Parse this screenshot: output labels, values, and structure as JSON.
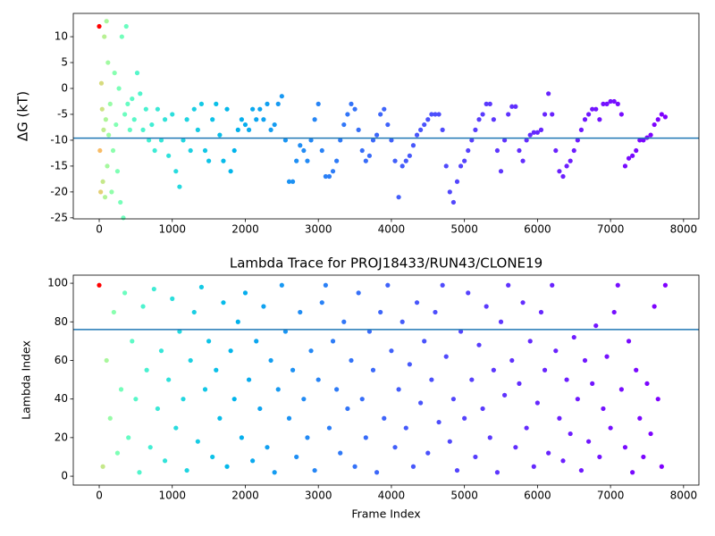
{
  "chart_data": [
    {
      "type": "scatter",
      "ylabel": "ΔG (kT)",
      "colormap": "rainbow_r",
      "x": [
        0,
        10,
        20,
        30,
        40,
        50,
        60,
        70,
        80,
        90,
        100,
        110,
        120,
        130,
        150,
        170,
        190,
        210,
        230,
        250,
        270,
        290,
        310,
        330,
        350,
        370,
        390,
        420,
        450,
        480,
        520,
        560,
        600,
        640,
        680,
        720,
        760,
        800,
        850,
        900,
        950,
        1000,
        1050,
        1100,
        1150,
        1200,
        1250,
        1300,
        1350,
        1400,
        1450,
        1500,
        1550,
        1600,
        1650,
        1700,
        1750,
        1800,
        1850,
        1900,
        1950,
        2000,
        2050,
        2100,
        2150,
        2200,
        2250,
        2300,
        2350,
        2400,
        2450,
        2500,
        2550,
        2600,
        2650,
        2700,
        2750,
        2800,
        2850,
        2900,
        2950,
        3000,
        3050,
        3100,
        3150,
        3200,
        3250,
        3300,
        3350,
        3400,
        3450,
        3500,
        3550,
        3600,
        3650,
        3700,
        3750,
        3800,
        3850,
        3900,
        3950,
        4000,
        4050,
        4100,
        4150,
        4200,
        4250,
        4300,
        4350,
        4400,
        4450,
        4500,
        4550,
        4600,
        4650,
        4700,
        4750,
        4800,
        4850,
        4900,
        4950,
        5000,
        5050,
        5100,
        5150,
        5200,
        5250,
        5300,
        5350,
        5400,
        5450,
        5500,
        5550,
        5600,
        5650,
        5700,
        5750,
        5800,
        5850,
        5900,
        5950,
        6000,
        6050,
        6100,
        6150,
        6200,
        6250,
        6300,
        6350,
        6400,
        6450,
        6500,
        6550,
        6600,
        6650,
        6700,
        6750,
        6800,
        6850,
        6900,
        6950,
        7000,
        7050,
        7100,
        7150,
        7200,
        7250,
        7300,
        7350,
        7400,
        7450,
        7500,
        7550,
        7600,
        7650,
        7700,
        7750
      ],
      "values": [
        12,
        -12,
        -20,
        1,
        -4,
        -18,
        -8,
        10,
        -21,
        -6,
        13,
        -15,
        5,
        -9,
        -3,
        -20,
        -12,
        3,
        -7,
        -16,
        0,
        -22,
        10,
        -25,
        -5,
        12,
        -3,
        -8,
        -2,
        -6,
        3,
        -1,
        -8,
        -4,
        -10,
        -7,
        -12,
        -4,
        -10,
        -6,
        -13,
        -5,
        -16,
        -19,
        -10,
        -6,
        -12,
        -4,
        -8,
        -3,
        -12,
        -14,
        -6,
        -3,
        -9,
        -14,
        -4,
        -16,
        -12,
        -8,
        -6,
        -7,
        -8,
        -4,
        -6,
        -4,
        -6,
        -3,
        -8,
        -7,
        -3,
        -1.5,
        -10,
        -18,
        -18,
        -14,
        -11,
        -12,
        -14,
        -10,
        -6,
        -3,
        -12,
        -17,
        -17,
        -16,
        -14,
        -10,
        -7,
        -5,
        -3,
        -4,
        -8,
        -12,
        -14,
        -13,
        -10,
        -9,
        -5,
        -4,
        -7,
        -10,
        -14,
        -21,
        -15,
        -14,
        -13,
        -11,
        -9,
        -8,
        -7,
        -6,
        -5,
        -5,
        -5,
        -8,
        -15,
        -20,
        -22,
        -18,
        -15,
        -14,
        -12,
        -10,
        -8,
        -6,
        -5,
        -3,
        -3,
        -6,
        -12,
        -16,
        -10,
        -5,
        -3.5,
        -3.5,
        -12,
        -14,
        -10,
        -9,
        -8.5,
        -8.5,
        -8,
        -5,
        -1,
        -5,
        -12,
        -16,
        -17,
        -15,
        -14,
        -12,
        -10,
        -8,
        -6,
        -5,
        -4,
        -4,
        -6,
        -3,
        -3,
        -2.5,
        -2.5,
        -3,
        -5,
        -15,
        -13.5,
        -13,
        -12,
        -10,
        -10,
        -9.5,
        -9,
        -7,
        -6,
        -5,
        -5.5
      ],
      "hline": -9.6,
      "hline_color": "#1f77b4",
      "xlim": [
        -355,
        8210
      ],
      "ylim": [
        -25.2,
        14.5
      ],
      "xticks": [
        0,
        1000,
        2000,
        3000,
        4000,
        5000,
        6000,
        7000,
        8000
      ],
      "yticks": [
        -25,
        -20,
        -15,
        -10,
        -5,
        0,
        5,
        10
      ]
    },
    {
      "type": "scatter",
      "title": "Lambda Trace for PROJ18433/RUN43/CLONE19",
      "xlabel": "Frame Index",
      "ylabel": "Lambda Index",
      "colormap": "rainbow_r",
      "x": [
        0,
        50,
        100,
        150,
        200,
        250,
        300,
        350,
        400,
        450,
        500,
        550,
        600,
        650,
        700,
        750,
        800,
        850,
        900,
        950,
        1000,
        1050,
        1100,
        1150,
        1200,
        1250,
        1300,
        1350,
        1400,
        1450,
        1500,
        1550,
        1600,
        1650,
        1700,
        1750,
        1800,
        1850,
        1900,
        1950,
        2000,
        2050,
        2100,
        2150,
        2200,
        2250,
        2300,
        2350,
        2400,
        2450,
        2500,
        2550,
        2600,
        2650,
        2700,
        2750,
        2800,
        2850,
        2900,
        2950,
        3000,
        3050,
        3100,
        3150,
        3200,
        3250,
        3300,
        3350,
        3400,
        3450,
        3500,
        3550,
        3600,
        3650,
        3700,
        3750,
        3800,
        3850,
        3900,
        3950,
        4000,
        4050,
        4100,
        4150,
        4200,
        4250,
        4300,
        4350,
        4400,
        4450,
        4500,
        4550,
        4600,
        4650,
        4700,
        4750,
        4800,
        4850,
        4900,
        4950,
        5000,
        5050,
        5100,
        5150,
        5200,
        5250,
        5300,
        5350,
        5400,
        5450,
        5500,
        5550,
        5600,
        5650,
        5700,
        5750,
        5800,
        5850,
        5900,
        5950,
        6000,
        6050,
        6100,
        6150,
        6200,
        6250,
        6300,
        6350,
        6400,
        6450,
        6500,
        6550,
        6600,
        6650,
        6700,
        6750,
        6800,
        6850,
        6900,
        6950,
        7000,
        7050,
        7100,
        7150,
        7200,
        7250,
        7300,
        7350,
        7400,
        7450,
        7500,
        7550,
        7600,
        7650,
        7700,
        7750
      ],
      "values": [
        99,
        5,
        60,
        30,
        85,
        12,
        45,
        95,
        20,
        70,
        40,
        2,
        88,
        55,
        15,
        97,
        35,
        65,
        8,
        50,
        92,
        25,
        75,
        40,
        3,
        60,
        85,
        18,
        98,
        45,
        70,
        10,
        55,
        30,
        90,
        5,
        65,
        40,
        80,
        20,
        95,
        50,
        8,
        70,
        35,
        88,
        15,
        60,
        2,
        45,
        99,
        75,
        30,
        55,
        10,
        85,
        40,
        20,
        65,
        3,
        50,
        90,
        99,
        25,
        70,
        45,
        12,
        80,
        35,
        60,
        5,
        95,
        40,
        20,
        75,
        55,
        2,
        85,
        30,
        99,
        65,
        15,
        45,
        80,
        25,
        58,
        5,
        90,
        38,
        70,
        12,
        50,
        85,
        28,
        99,
        62,
        18,
        40,
        3,
        75,
        30,
        95,
        50,
        10,
        68,
        35,
        88,
        20,
        55,
        2,
        80,
        42,
        99,
        60,
        15,
        48,
        90,
        25,
        70,
        5,
        38,
        85,
        55,
        12,
        99,
        65,
        30,
        8,
        50,
        22,
        72,
        40,
        3,
        60,
        18,
        48,
        78,
        10,
        35,
        62,
        25,
        85,
        99,
        45,
        15,
        70,
        2,
        55,
        30,
        10,
        48,
        22,
        88,
        40,
        5,
        99
      ],
      "hline": 76,
      "hline_color": "#1f77b4",
      "xlim": [
        -355,
        8210
      ],
      "ylim": [
        -4.6,
        104.2
      ],
      "xticks": [
        0,
        1000,
        2000,
        3000,
        4000,
        5000,
        6000,
        7000,
        8000
      ],
      "yticks": [
        0,
        20,
        40,
        60,
        80,
        100
      ]
    }
  ]
}
